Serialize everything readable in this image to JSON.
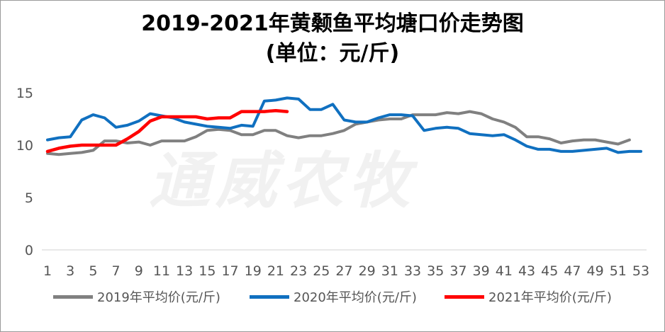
{
  "chart_data": {
    "type": "line",
    "title": "2019-2021年黄颡鱼平均塘口价走势图",
    "subtitle": "(单位：元/斤)",
    "watermark": "通威农牧",
    "x": [
      1,
      2,
      3,
      4,
      5,
      6,
      7,
      8,
      9,
      10,
      11,
      12,
      13,
      14,
      15,
      16,
      17,
      18,
      19,
      20,
      21,
      22,
      23,
      24,
      25,
      26,
      27,
      28,
      29,
      30,
      31,
      32,
      33,
      34,
      35,
      36,
      37,
      38,
      39,
      40,
      41,
      42,
      43,
      44,
      45,
      46,
      47,
      48,
      49,
      50,
      51,
      52,
      53
    ],
    "x_tick_labels": [
      "1",
      "3",
      "5",
      "7",
      "9",
      "11",
      "13",
      "15",
      "17",
      "19",
      "21",
      "23",
      "25",
      "27",
      "29",
      "31",
      "33",
      "35",
      "37",
      "39",
      "41",
      "43",
      "45",
      "47",
      "49",
      "51",
      "53"
    ],
    "ylim": [
      0,
      15
    ],
    "y_ticks": [
      "0",
      "5",
      "10",
      "15"
    ],
    "grid": false,
    "legend_position": "bottom",
    "series": [
      {
        "name": "2019年平均价(元/斤)",
        "color": "#808080",
        "values": [
          9.2,
          9.1,
          9.2,
          9.3,
          9.5,
          10.4,
          10.4,
          10.2,
          10.3,
          10.0,
          10.4,
          10.4,
          10.4,
          10.8,
          11.4,
          11.5,
          11.4,
          11.0,
          11.0,
          11.4,
          11.4,
          10.9,
          10.7,
          10.9,
          10.9,
          11.1,
          11.4,
          12.0,
          12.2,
          12.4,
          12.5,
          12.5,
          12.9,
          12.9,
          12.9,
          13.1,
          13.0,
          13.2,
          13.0,
          12.5,
          12.2,
          11.7,
          10.8,
          10.8,
          10.6,
          10.2,
          10.4,
          10.5,
          10.5,
          10.3,
          10.1,
          10.5,
          null
        ]
      },
      {
        "name": "2020年平均价(元/斤)",
        "color": "#1070c0",
        "values": [
          10.5,
          10.7,
          10.8,
          12.4,
          12.9,
          12.6,
          11.7,
          11.9,
          12.3,
          13.0,
          12.8,
          12.6,
          12.2,
          12.0,
          11.8,
          11.7,
          11.6,
          11.9,
          11.8,
          14.2,
          14.3,
          14.5,
          14.4,
          13.4,
          13.4,
          13.9,
          12.4,
          12.2,
          12.2,
          12.6,
          12.9,
          12.9,
          12.8,
          11.4,
          11.6,
          11.7,
          11.6,
          11.1,
          11.0,
          10.9,
          11.0,
          10.5,
          9.9,
          9.6,
          9.6,
          9.4,
          9.4,
          9.5,
          9.6,
          9.7,
          9.3,
          9.4,
          9.4
        ]
      },
      {
        "name": "2021年平均价(元/斤)",
        "color": "#ff0000",
        "values": [
          9.4,
          9.7,
          9.9,
          10.0,
          10.0,
          10.0,
          10.0,
          10.6,
          11.3,
          12.3,
          12.7,
          12.7,
          12.7,
          12.7,
          12.5,
          12.6,
          12.6,
          13.2,
          13.2,
          13.2,
          13.3,
          13.2,
          null,
          null,
          null,
          null,
          null,
          null,
          null,
          null,
          null,
          null,
          null,
          null,
          null,
          null,
          null,
          null,
          null,
          null,
          null,
          null,
          null,
          null,
          null,
          null,
          null,
          null,
          null,
          null,
          null,
          null,
          null
        ]
      }
    ]
  }
}
